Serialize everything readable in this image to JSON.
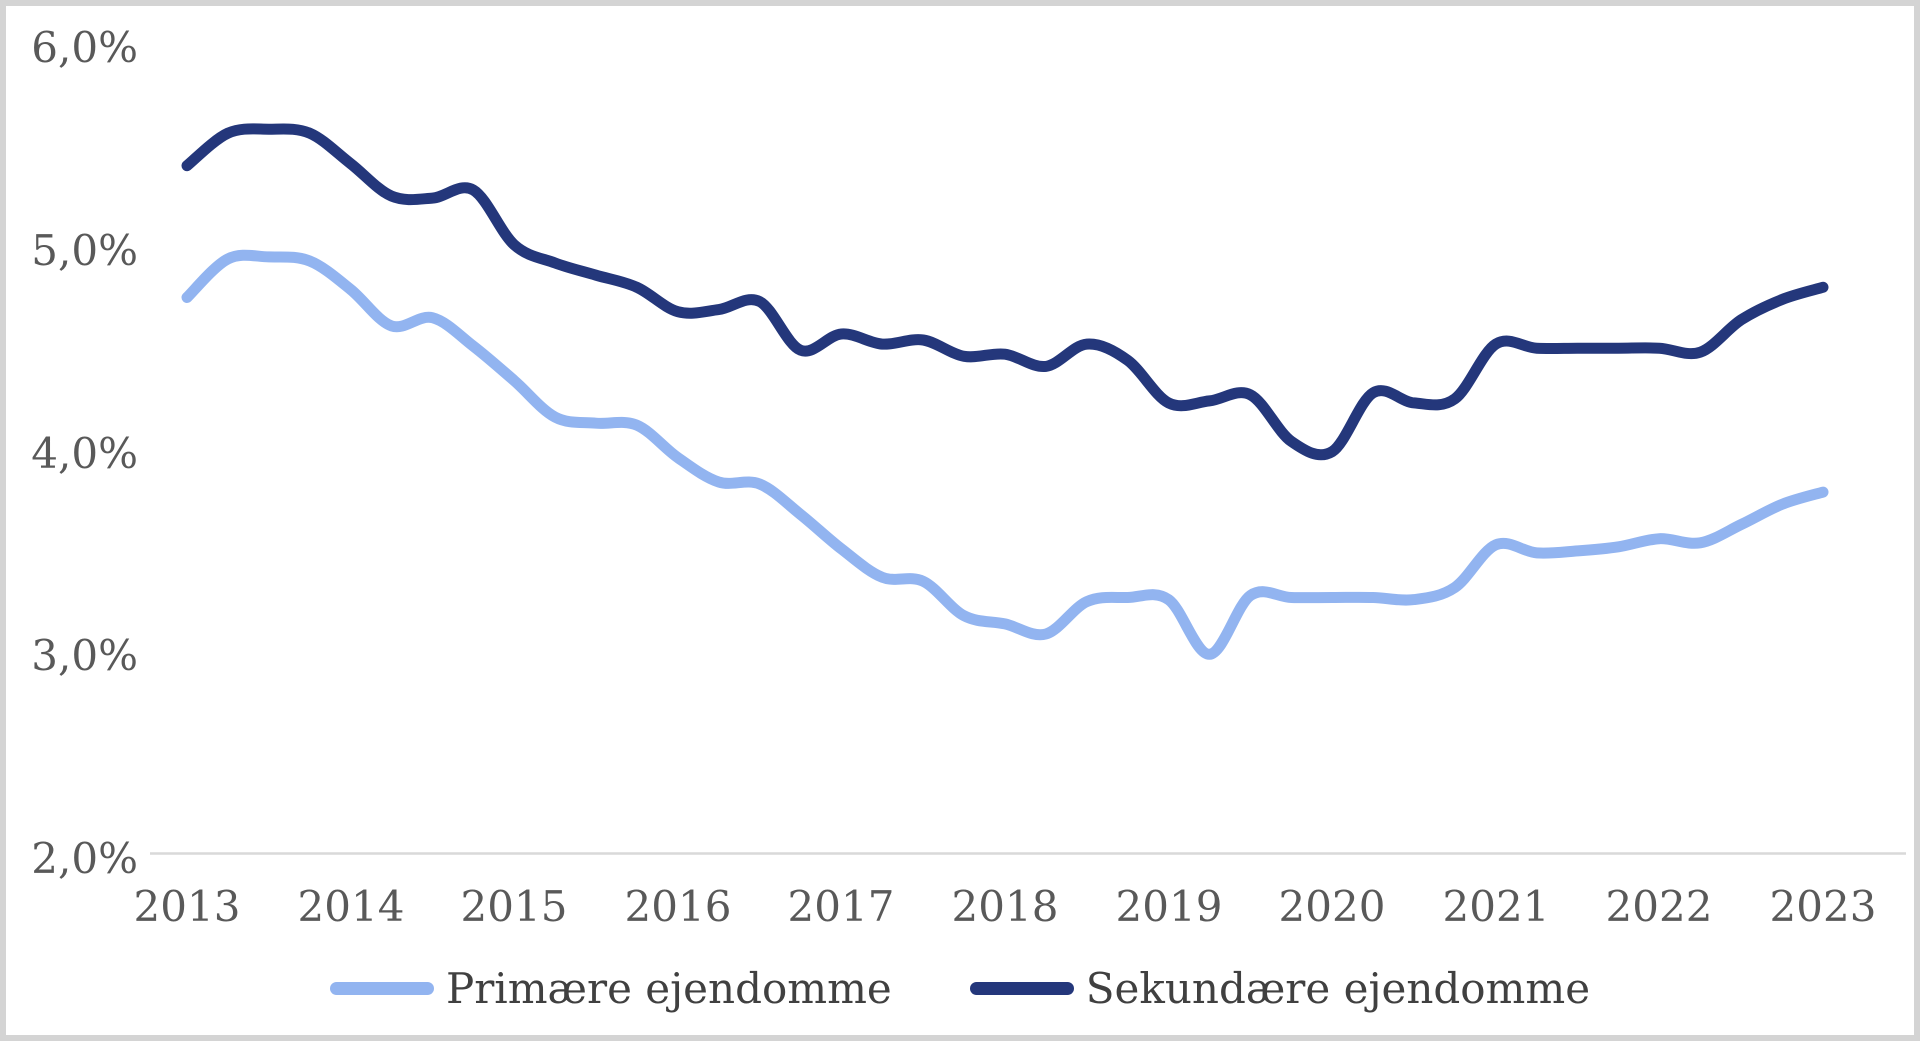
{
  "frame": {
    "background_color": "#ffffff",
    "border_color": "#d4d4d4"
  },
  "axis": {
    "baseline_color": "#d9d9d9",
    "tick_label_color": "#595959"
  },
  "legend": {
    "text_color": "#404040"
  },
  "chart_data": {
    "type": "line",
    "title": "",
    "xlabel": "",
    "ylabel": "",
    "x_range": [
      2013,
      2023
    ],
    "points_per_year": 4,
    "x_tick_labels": [
      "2013",
      "2014",
      "2015",
      "2016",
      "2017",
      "2018",
      "2019",
      "2020",
      "2021",
      "2022",
      "2023"
    ],
    "y_tick_labels": [
      "6,0%",
      "5,0%",
      "4,0%",
      "3,0%",
      "2,0%"
    ],
    "ylim": [
      2.0,
      6.0
    ],
    "y_tick_step": 1.0,
    "y_unit": "%",
    "decimal_separator": ",",
    "grid": false,
    "legend_position": "bottom",
    "series": [
      {
        "name": "Primære ejendomme",
        "color": "#92b4f0",
        "values": [
          4.74,
          4.93,
          4.94,
          4.92,
          4.78,
          4.6,
          4.64,
          4.5,
          4.33,
          4.15,
          4.12,
          4.11,
          3.95,
          3.83,
          3.82,
          3.67,
          3.5,
          3.36,
          3.34,
          3.17,
          3.13,
          3.08,
          3.24,
          3.26,
          3.25,
          2.98,
          3.27,
          3.26,
          3.26,
          3.26,
          3.25,
          3.31,
          3.52,
          3.48,
          3.49,
          3.51,
          3.55,
          3.53,
          3.62,
          3.72,
          3.78
        ]
      },
      {
        "name": "Sekundære ejendomme",
        "color": "#24377b",
        "values": [
          5.39,
          5.55,
          5.57,
          5.55,
          5.4,
          5.24,
          5.23,
          5.27,
          5.0,
          4.91,
          4.85,
          4.79,
          4.67,
          4.68,
          4.72,
          4.48,
          4.56,
          4.51,
          4.53,
          4.45,
          4.46,
          4.4,
          4.51,
          4.43,
          4.22,
          4.23,
          4.26,
          4.03,
          3.98,
          4.27,
          4.22,
          4.24,
          4.51,
          4.49,
          4.49,
          4.49,
          4.49,
          4.47,
          4.63,
          4.73,
          4.79
        ]
      }
    ]
  }
}
